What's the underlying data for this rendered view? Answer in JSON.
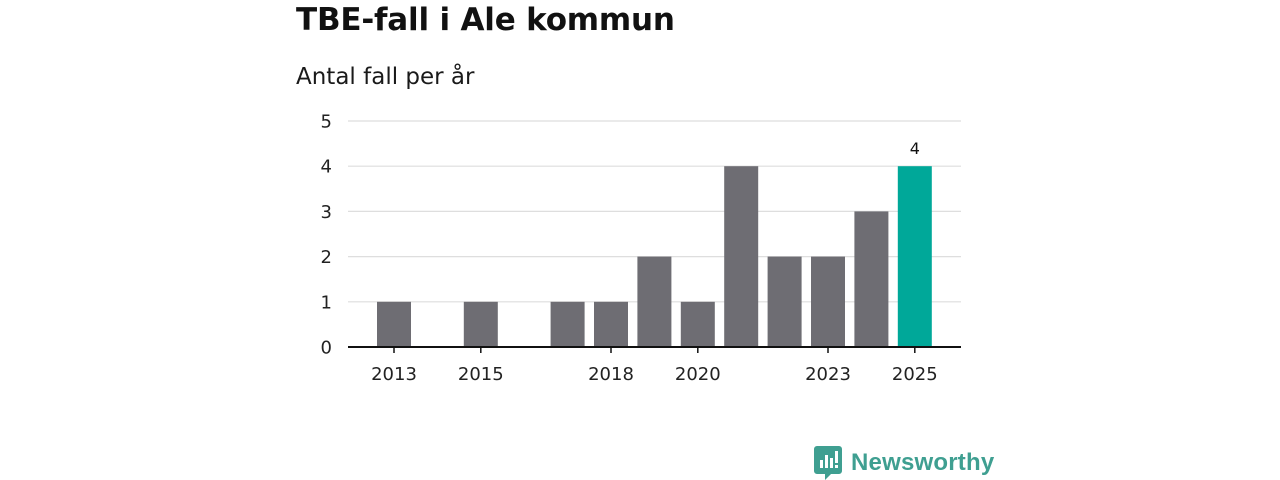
{
  "header": {
    "title": "TBE-fall i Ale kommun",
    "subtitle": "Antal fall per år"
  },
  "chart_data": {
    "type": "bar",
    "title": "TBE-fall i Ale kommun",
    "subtitle": "Antal fall per år",
    "xlabel": "",
    "ylabel": "",
    "categories": [
      "2013",
      "2014",
      "2015",
      "2016",
      "2017",
      "2018",
      "2019",
      "2020",
      "2021",
      "2022",
      "2023",
      "2024",
      "2025"
    ],
    "values": [
      1,
      0,
      1,
      0,
      1,
      1,
      2,
      1,
      4,
      2,
      2,
      3,
      4
    ],
    "x_tick_labels": [
      "2013",
      "2015",
      "2018",
      "2020",
      "2023",
      "2025"
    ],
    "y_ticks": [
      "0",
      "1",
      "2",
      "3",
      "4",
      "5"
    ],
    "ylim": [
      0,
      5
    ],
    "grid": true,
    "highlight_category": "2025",
    "data_labels": [
      {
        "category": "2025",
        "text": "4"
      }
    ],
    "colors": {
      "bar": "#6e6d73",
      "highlight": "#00a899",
      "grid": "#dedede",
      "axis": "#111111"
    }
  },
  "brand": {
    "name": "Newsworthy",
    "icon": "newsworthy-logo-icon",
    "color": "#3f9f91"
  }
}
